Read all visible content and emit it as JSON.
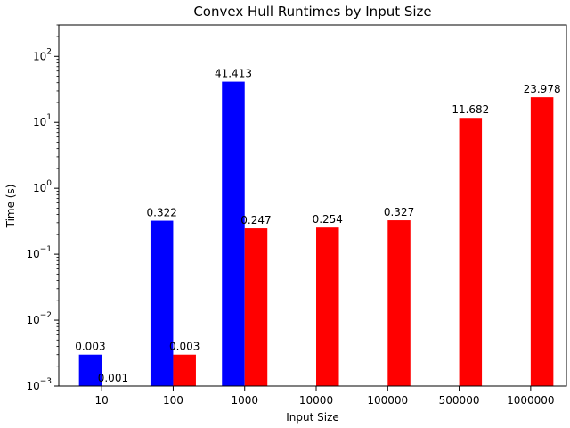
{
  "chart_data": {
    "type": "bar",
    "title": "Convex Hull Runtimes by Input Size",
    "xlabel": "Input Size",
    "ylabel": "Time (s)",
    "yscale": "log",
    "ylim": [
      0.001,
      300
    ],
    "yticks": [
      {
        "value": 0.001,
        "base": "10",
        "exp": "−3"
      },
      {
        "value": 0.01,
        "base": "10",
        "exp": "−2"
      },
      {
        "value": 0.1,
        "base": "10",
        "exp": "−1"
      },
      {
        "value": 1,
        "base": "10",
        "exp": "0"
      },
      {
        "value": 10,
        "base": "10",
        "exp": "1"
      },
      {
        "value": 100,
        "base": "10",
        "exp": "2"
      }
    ],
    "categories": [
      "10",
      "100",
      "1000",
      "10000",
      "100000",
      "500000",
      "1000000"
    ],
    "grid": false,
    "series": [
      {
        "color": "#0000ff",
        "values": [
          0.003,
          0.322,
          41.413,
          null,
          null,
          null,
          null
        ],
        "labels": [
          "0.003",
          "0.322",
          "41.413",
          null,
          null,
          null,
          null
        ]
      },
      {
        "color": "#ff0000",
        "values": [
          0.001,
          0.003,
          0.247,
          0.254,
          0.327,
          11.682,
          23.978
        ],
        "labels": [
          "0.001",
          "0.003",
          "0.247",
          "0.254",
          "0.327",
          "11.682",
          "23.978"
        ]
      }
    ]
  }
}
